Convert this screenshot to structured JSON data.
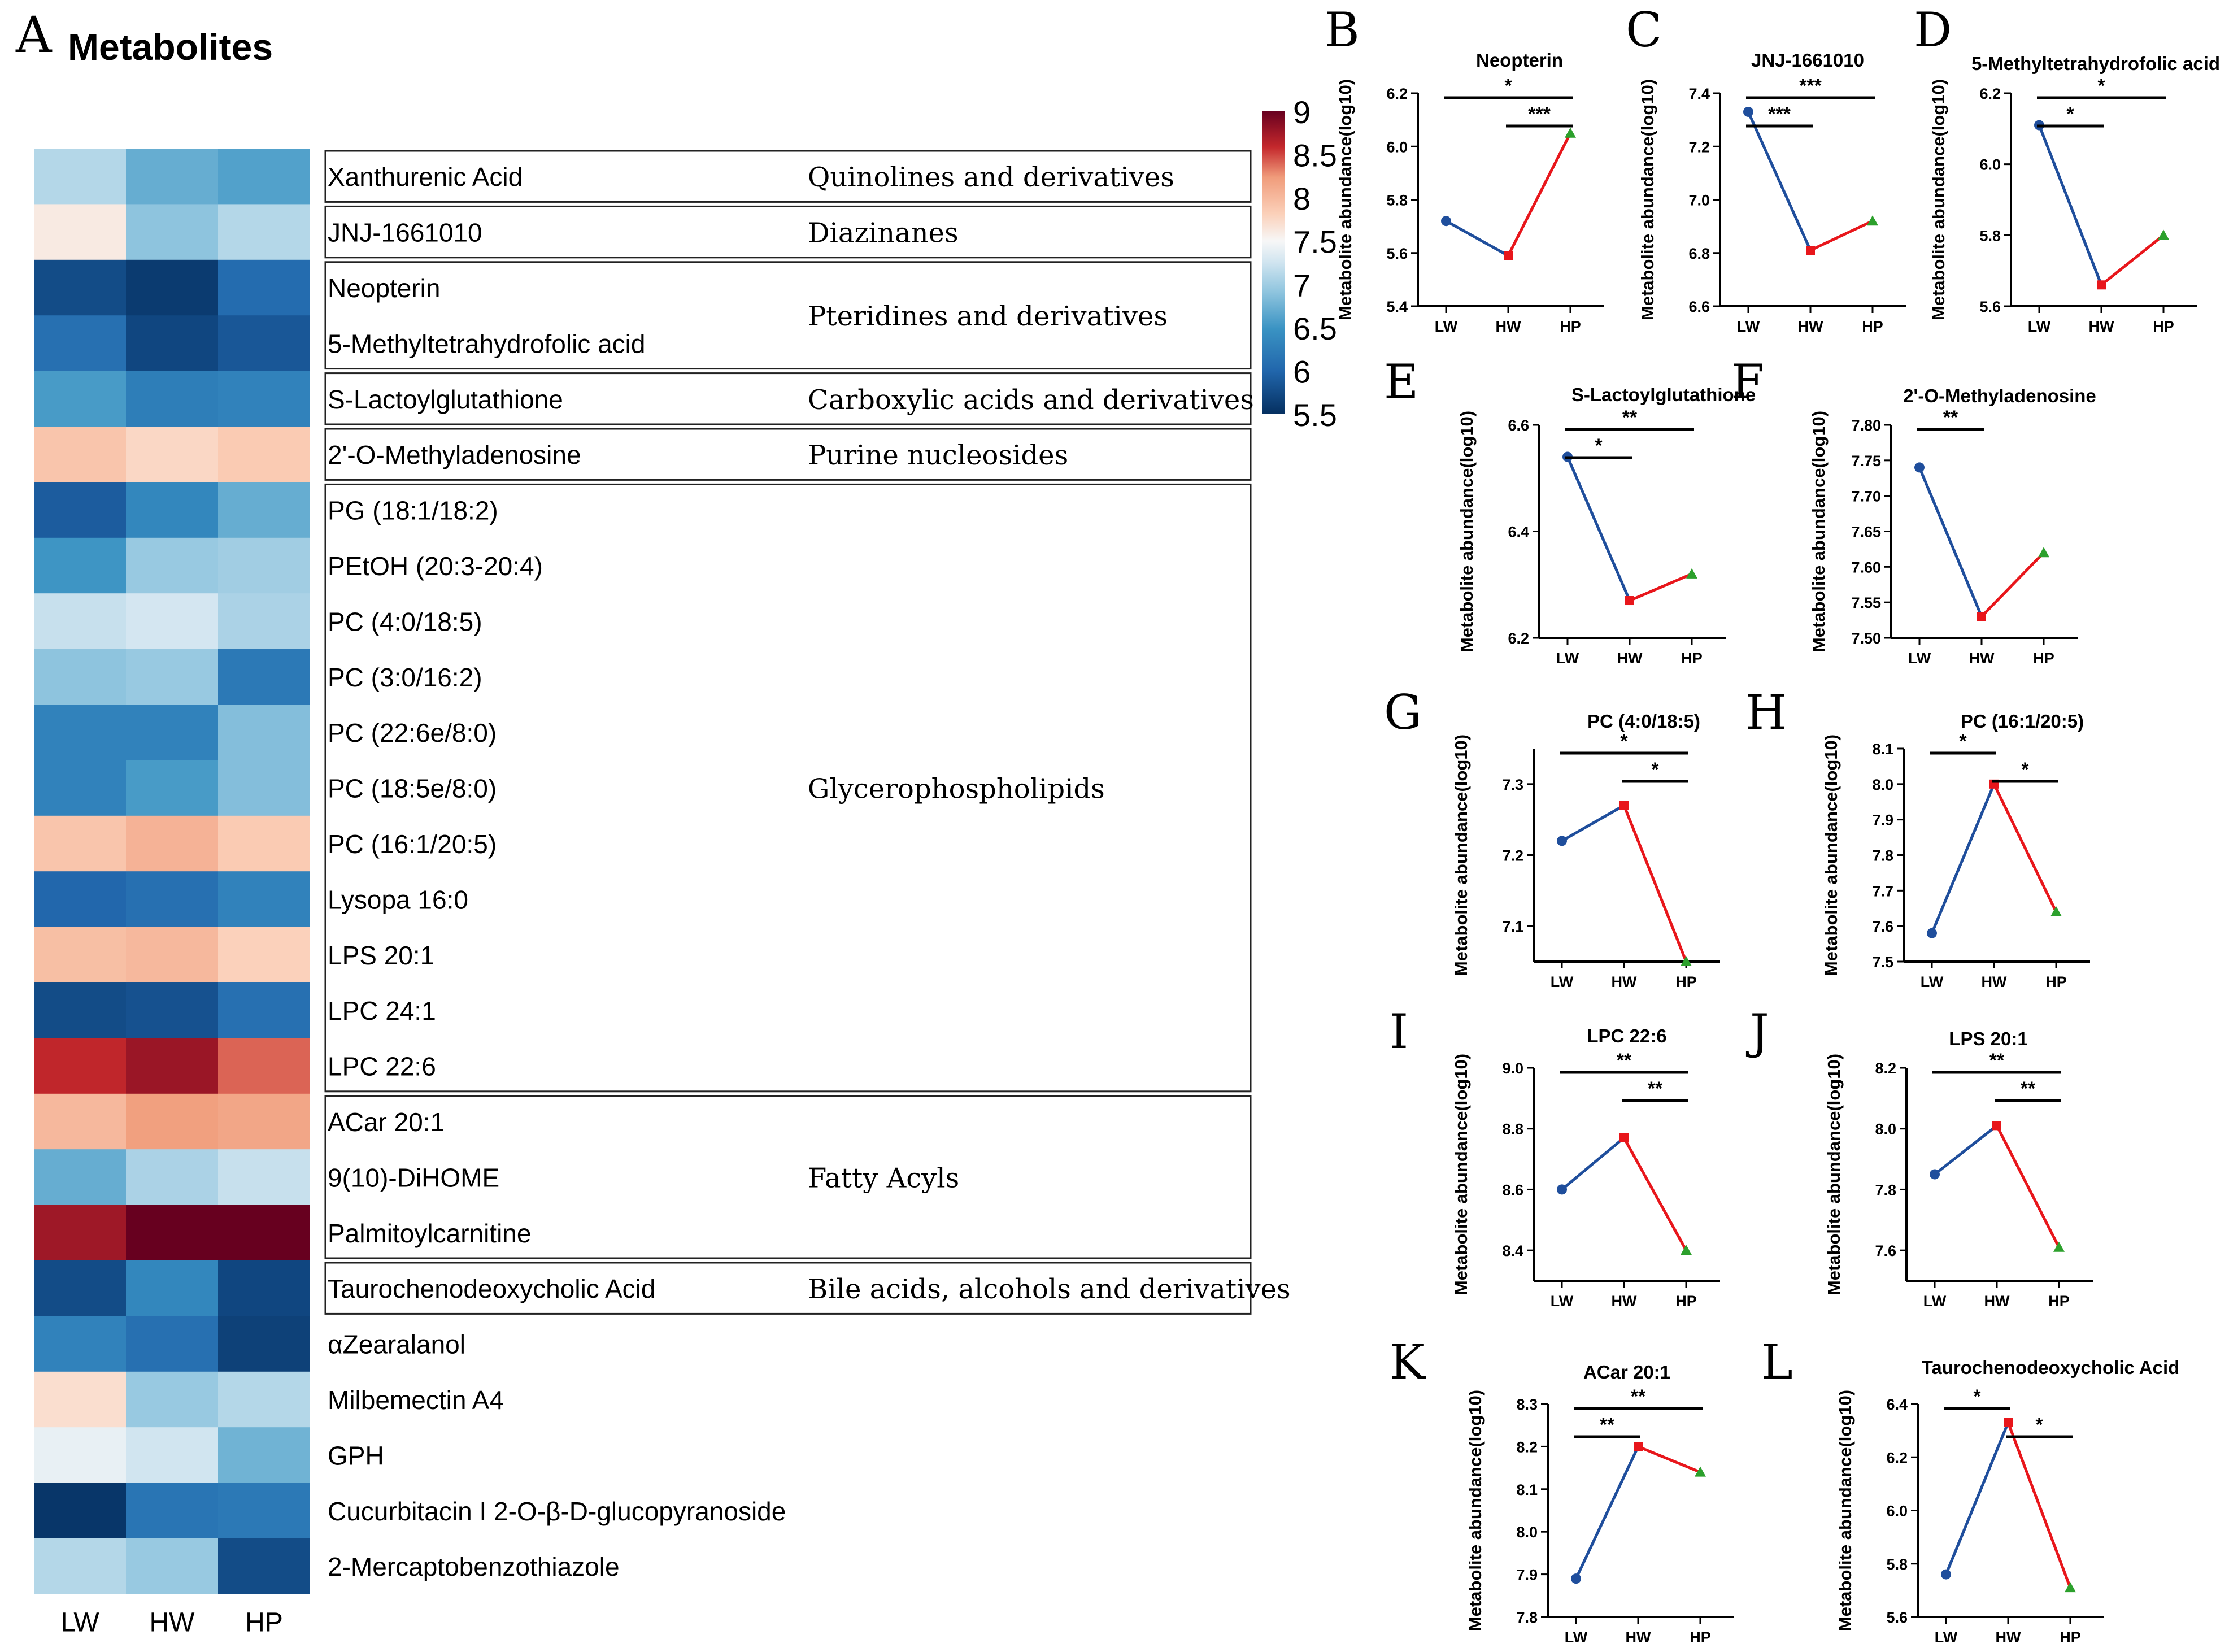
{
  "figure": {
    "panel_a_letter": "A",
    "panel_a_title": "Metabolites",
    "group_labels": [
      "LW",
      "HW",
      "HP"
    ]
  },
  "colors": {
    "low": "#053061",
    "mid": "#f7f7f7",
    "high": "#67001f",
    "line_lw_hw_blue": "#1f4e9c",
    "line_red": "#e8161b",
    "marker_lw": "#1f4e9c",
    "marker_hw": "#e8161b",
    "marker_hp": "#2ca02c"
  },
  "chart_data": [
    {
      "type": "heatmap",
      "panel": "A",
      "title": "Metabolites",
      "columns": [
        "LW",
        "HW",
        "HP"
      ],
      "rows": [
        {
          "name": "Xanthurenic Acid",
          "values": [
            7.1,
            6.7,
            6.6
          ]
        },
        {
          "name": "JNJ-1661010",
          "values": [
            7.6,
            6.9,
            7.1
          ]
        },
        {
          "name": "Neopterin",
          "values": [
            5.75,
            5.6,
            6.05
          ]
        },
        {
          "name": "5-Methyltetrahydrofolic acid",
          "values": [
            6.1,
            5.7,
            5.85
          ]
        },
        {
          "name": "S-Lactoylglutathione",
          "values": [
            6.55,
            6.25,
            6.3
          ]
        },
        {
          "name": "2'-O-Methyladenosine",
          "values": [
            7.9,
            7.75,
            7.85
          ]
        },
        {
          "name": "PG (18:1/18:2)",
          "values": [
            5.9,
            6.35,
            6.7
          ]
        },
        {
          "name": "PEtOH (20:3-20:4)",
          "values": [
            6.5,
            6.95,
            7.0
          ]
        },
        {
          "name": "PC (4:0/18:5)",
          "values": [
            7.2,
            7.27,
            7.05
          ]
        },
        {
          "name": "PC (3:0/16:2)",
          "values": [
            6.9,
            6.95,
            6.2
          ]
        },
        {
          "name": "PC (22:6e/8:0)",
          "values": [
            6.3,
            6.3,
            6.85
          ]
        },
        {
          "name": "PC (18:5e/8:0)",
          "values": [
            6.3,
            6.55,
            6.85
          ]
        },
        {
          "name": "PC (16:1/20:5)",
          "values": [
            7.9,
            8.05,
            7.85
          ]
        },
        {
          "name": "Lysopa 16:0",
          "values": [
            6.0,
            6.1,
            6.3
          ]
        },
        {
          "name": "LPS 20:1",
          "values": [
            7.95,
            8.0,
            7.8
          ]
        },
        {
          "name": "LPC 24:1",
          "values": [
            5.75,
            5.8,
            6.1
          ]
        },
        {
          "name": "LPC 22:6",
          "values": [
            8.6,
            8.77,
            8.4
          ]
        },
        {
          "name": "ACar 20:1",
          "values": [
            8.0,
            8.2,
            8.15
          ]
        },
        {
          "name": "9(10)-DiHOME",
          "values": [
            6.7,
            7.05,
            7.2
          ]
        },
        {
          "name": "Palmitoylcarnitine",
          "values": [
            8.75,
            9.0,
            9.05
          ]
        },
        {
          "name": "Taurochenodeoxycholic Acid",
          "values": [
            5.75,
            6.35,
            5.7
          ]
        },
        {
          "name": "αZearalanol",
          "values": [
            6.3,
            6.1,
            5.65
          ]
        },
        {
          "name": "Milbemectin A4",
          "values": [
            7.7,
            6.95,
            7.1
          ]
        },
        {
          "name": "GPH",
          "values": [
            7.4,
            7.25,
            6.75
          ]
        },
        {
          "name": "Cucurbitacin I 2-O-β-D-glucopyranoside",
          "values": [
            5.55,
            6.15,
            6.2
          ]
        },
        {
          "name": "2-Mercaptobenzothiazole",
          "values": [
            7.1,
            6.95,
            5.75
          ]
        }
      ],
      "classes": [
        {
          "label": "Quinolines and derivatives",
          "rows": [
            0,
            0
          ]
        },
        {
          "label": "Diazinanes",
          "rows": [
            1,
            1
          ]
        },
        {
          "label": "Pteridines and derivatives",
          "rows": [
            2,
            3
          ]
        },
        {
          "label": "Carboxylic acids and derivatives",
          "rows": [
            4,
            4
          ]
        },
        {
          "label": "Purine nucleosides",
          "rows": [
            5,
            5
          ]
        },
        {
          "label": "Glycerophospholipids",
          "rows": [
            6,
            16
          ]
        },
        {
          "label": "Fatty Acyls",
          "rows": [
            17,
            19
          ]
        },
        {
          "label": "Bile acids, alcohols and derivatives",
          "rows": [
            20,
            20
          ]
        }
      ],
      "colorbar": {
        "min": 5.5,
        "max": 9,
        "ticks": [
          "9",
          "8.5",
          "8",
          "7.5",
          "7",
          "6.5",
          "6",
          "5.5"
        ]
      }
    },
    {
      "type": "line",
      "panel": "B",
      "letter": "B",
      "title": "Neopterin",
      "ylabel": "Metabolite abundance(log10)",
      "categories": [
        "LW",
        "HW",
        "HP"
      ],
      "values": [
        5.72,
        5.59,
        6.05
      ],
      "ylim": [
        5.4,
        6.2
      ],
      "yticks": [
        "5.4",
        "5.6",
        "5.8",
        "6.0",
        "6.2"
      ],
      "brackets": [
        {
          "from": 0,
          "to": 2,
          "label": "*"
        },
        {
          "from": 1,
          "to": 2,
          "label": "***"
        }
      ]
    },
    {
      "type": "line",
      "panel": "C",
      "letter": "C",
      "title": "JNJ-1661010",
      "ylabel": "Metabolite abundance(log10)",
      "categories": [
        "LW",
        "HW",
        "HP"
      ],
      "values": [
        7.33,
        6.81,
        6.92
      ],
      "ylim": [
        6.6,
        7.4
      ],
      "yticks": [
        "6.6",
        "6.8",
        "7.0",
        "7.2",
        "7.4"
      ],
      "brackets": [
        {
          "from": 0,
          "to": 2,
          "label": "***"
        },
        {
          "from": 0,
          "to": 1,
          "label": "***"
        }
      ]
    },
    {
      "type": "line",
      "panel": "D",
      "letter": "D",
      "title": "5-Methyltetrahydrofolic acid",
      "ylabel": "Metabolite abundance(log10)",
      "categories": [
        "LW",
        "HW",
        "HP"
      ],
      "values": [
        6.11,
        5.66,
        5.8
      ],
      "ylim": [
        5.6,
        6.2
      ],
      "yticks": [
        "5.6",
        "5.8",
        "6.0",
        "6.2"
      ],
      "brackets": [
        {
          "from": 0,
          "to": 2,
          "label": "*"
        },
        {
          "from": 0,
          "to": 1,
          "label": "*"
        }
      ]
    },
    {
      "type": "line",
      "panel": "E",
      "letter": "E",
      "title": "S-Lactoylglutathione",
      "ylabel": "Metabolite abundance(log10)",
      "categories": [
        "LW",
        "HW",
        "HP"
      ],
      "values": [
        6.54,
        6.27,
        6.32
      ],
      "ylim": [
        6.2,
        6.6
      ],
      "yticks": [
        "6.2",
        "6.4",
        "6.6"
      ],
      "brackets": [
        {
          "from": 0,
          "to": 2,
          "label": "**"
        },
        {
          "from": 0,
          "to": 1,
          "label": "*"
        }
      ]
    },
    {
      "type": "line",
      "panel": "F",
      "letter": "F",
      "title": "2'-O-Methyladenosine",
      "ylabel": "Metabolite abundance(log10)",
      "categories": [
        "LW",
        "HW",
        "HP"
      ],
      "values": [
        7.74,
        7.53,
        7.62
      ],
      "ylim": [
        7.5,
        7.8
      ],
      "yticks": [
        "7.50",
        "7.55",
        "7.60",
        "7.65",
        "7.70",
        "7.75",
        "7.80"
      ],
      "brackets": [
        {
          "from": 0,
          "to": 1,
          "label": "**"
        }
      ]
    },
    {
      "type": "line",
      "panel": "G",
      "letter": "G",
      "title": "PC (4:0/18:5)",
      "ylabel": "Metabolite abundance(log10)",
      "categories": [
        "LW",
        "HW",
        "HP"
      ],
      "values": [
        7.22,
        7.27,
        7.05
      ],
      "ylim": [
        7.05,
        7.35
      ],
      "yticks": [
        "7.1",
        "7.2",
        "7.3"
      ],
      "brackets": [
        {
          "from": 0,
          "to": 2,
          "label": "*"
        },
        {
          "from": 1,
          "to": 2,
          "label": "*"
        }
      ]
    },
    {
      "type": "line",
      "panel": "H",
      "letter": "H",
      "title": "PC (16:1/20:5)",
      "ylabel": "Metabolite abundance(log10)",
      "categories": [
        "LW",
        "HW",
        "HP"
      ],
      "values": [
        7.58,
        8.0,
        7.64
      ],
      "ylim": [
        7.5,
        8.1
      ],
      "yticks": [
        "7.5",
        "7.6",
        "7.7",
        "7.8",
        "7.9",
        "8.0",
        "8.1"
      ],
      "brackets": [
        {
          "from": 0,
          "to": 1,
          "label": "*"
        },
        {
          "from": 1,
          "to": 2,
          "label": "*"
        }
      ]
    },
    {
      "type": "line",
      "panel": "I",
      "letter": "I",
      "title": "LPC 22:6",
      "ylabel": "Metabolite abundance(log10)",
      "categories": [
        "LW",
        "HW",
        "HP"
      ],
      "values": [
        8.6,
        8.77,
        8.4
      ],
      "ylim": [
        8.3,
        9.0
      ],
      "yticks": [
        "8.4",
        "8.6",
        "8.8",
        "9.0"
      ],
      "brackets": [
        {
          "from": 0,
          "to": 2,
          "label": "**"
        },
        {
          "from": 1,
          "to": 2,
          "label": "**"
        }
      ]
    },
    {
      "type": "line",
      "panel": "J",
      "letter": "J",
      "title": "LPS 20:1",
      "ylabel": "Metabolite abundance(log10)",
      "categories": [
        "LW",
        "HW",
        "HP"
      ],
      "values": [
        7.85,
        8.01,
        7.61
      ],
      "ylim": [
        7.5,
        8.2
      ],
      "yticks": [
        "7.6",
        "7.8",
        "8.0",
        "8.2"
      ],
      "brackets": [
        {
          "from": 0,
          "to": 2,
          "label": "**"
        },
        {
          "from": 1,
          "to": 2,
          "label": "**"
        }
      ]
    },
    {
      "type": "line",
      "panel": "K",
      "letter": "K",
      "title": "ACar 20:1",
      "ylabel": "Metabolite abundance(log10)",
      "categories": [
        "LW",
        "HW",
        "HP"
      ],
      "values": [
        7.89,
        8.2,
        8.14
      ],
      "ylim": [
        7.8,
        8.3
      ],
      "yticks": [
        "7.8",
        "7.9",
        "8.0",
        "8.1",
        "8.2",
        "8.3"
      ],
      "brackets": [
        {
          "from": 0,
          "to": 2,
          "label": "**"
        },
        {
          "from": 0,
          "to": 1,
          "label": "**"
        }
      ]
    },
    {
      "type": "line",
      "panel": "L",
      "letter": "L",
      "title": "Taurochenodeoxycholic Acid",
      "ylabel": "Metabolite abundance(log10)",
      "categories": [
        "LW",
        "HW",
        "HP"
      ],
      "values": [
        5.76,
        6.33,
        5.71
      ],
      "ylim": [
        5.6,
        6.4
      ],
      "yticks": [
        "5.6",
        "5.8",
        "6.0",
        "6.2",
        "6.4"
      ],
      "brackets": [
        {
          "from": 0,
          "to": 1,
          "label": "*"
        },
        {
          "from": 1,
          "to": 2,
          "label": "*"
        }
      ]
    }
  ]
}
